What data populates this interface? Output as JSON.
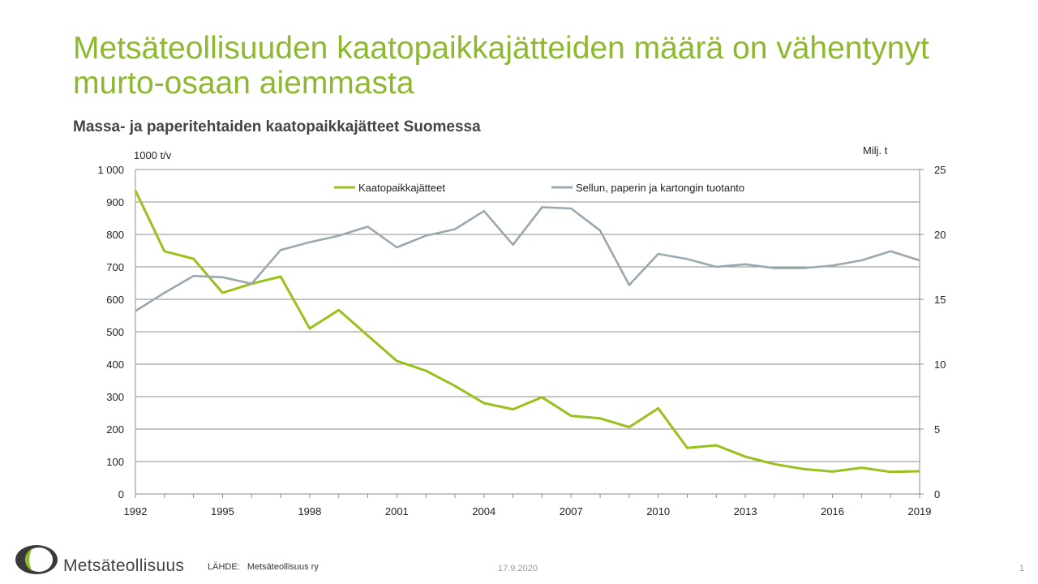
{
  "slide": {
    "title_line1": "Metsäteollisuuden kaatopaikkajätteiden määrä on vähentynyt",
    "title_line2": "murto-osaan aiemmasta",
    "subtitle": "Massa- ja paperitehtaiden kaatopaikkajätteet Suomessa"
  },
  "footer": {
    "brand": "Metsäteollisuus",
    "source_label": "LÄHDE:",
    "source_value": "Metsäteollisuus ry",
    "date": "17.9.2020",
    "page": "1"
  },
  "colors": {
    "waste": "#99c11c",
    "production": "#9aa8b0",
    "grid": "#8c8c8c",
    "logo_dark": "#3a3a3a",
    "logo_green": "#8db92e"
  },
  "chart_data": {
    "type": "line",
    "y_left_label": "1000 t/v",
    "y_right_label": "Milj. t",
    "y_left_ticks": [
      "0",
      "100",
      "200",
      "300",
      "400",
      "500",
      "600",
      "700",
      "800",
      "900",
      "1 000"
    ],
    "y_right_ticks": [
      "0",
      "5",
      "10",
      "15",
      "20",
      "25"
    ],
    "x_tick_labels": [
      "1992",
      "1995",
      "1998",
      "2001",
      "2004",
      "2007",
      "2010",
      "2013",
      "2016",
      "2019"
    ],
    "ylim_left": [
      0,
      1000
    ],
    "ylim_right": [
      0,
      25
    ],
    "grid": true,
    "legend_position": "top",
    "x": [
      1992,
      1993,
      1994,
      1995,
      1996,
      1997,
      1998,
      1999,
      2000,
      2001,
      2002,
      2003,
      2004,
      2005,
      2006,
      2007,
      2008,
      2009,
      2010,
      2011,
      2012,
      2013,
      2014,
      2015,
      2016,
      2017,
      2018,
      2019
    ],
    "series": [
      {
        "name": "Kaatopaikkajätteet",
        "axis": "left",
        "values": [
          935,
          748,
          725,
          620,
          648,
          670,
          510,
          567,
          488,
          410,
          380,
          333,
          280,
          261,
          298,
          241,
          233,
          206,
          264,
          142,
          150,
          115,
          92,
          77,
          69,
          81,
          68,
          70
        ]
      },
      {
        "name": "Sellun, paperin ja kartongin tuotanto",
        "axis": "right",
        "values": [
          14.1,
          15.5,
          16.8,
          16.7,
          16.2,
          18.8,
          19.4,
          19.9,
          20.6,
          19.0,
          19.9,
          20.4,
          21.8,
          19.2,
          22.1,
          22.0,
          20.3,
          16.1,
          18.5,
          18.1,
          17.5,
          17.7,
          17.4,
          17.4,
          17.6,
          18.0,
          18.7,
          18.0
        ]
      }
    ]
  }
}
